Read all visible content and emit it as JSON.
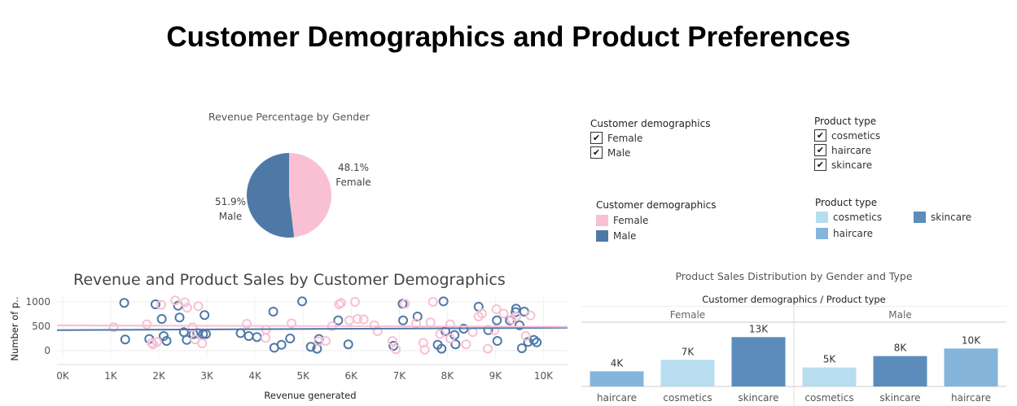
{
  "page": {
    "title": "Customer Demographics and Product Preferences"
  },
  "colors": {
    "female": "#f9c0d4",
    "male": "#4e79a7",
    "cosmetics": "#b8ddf0",
    "haircare": "#86b5db",
    "skincare": "#5b8cbb",
    "gridline": "#e6e6e6"
  },
  "filters": {
    "demographics": {
      "title": "Customer demographics",
      "items": [
        {
          "label": "Female",
          "checked": true,
          "mark": "✔"
        },
        {
          "label": "Male",
          "checked": true,
          "mark": "✔"
        }
      ]
    },
    "product_type": {
      "title": "Product type",
      "items": [
        {
          "label": "cosmetics",
          "checked": true,
          "mark": "✔"
        },
        {
          "label": "haircare",
          "checked": true,
          "mark": "✔"
        },
        {
          "label": "skincare",
          "checked": true,
          "mark": "✔"
        }
      ]
    }
  },
  "legends": {
    "demographics": {
      "title": "Customer demographics",
      "items": [
        {
          "label": "Female",
          "color": "#f9c0d4"
        },
        {
          "label": "Male",
          "color": "#4e79a7"
        }
      ]
    },
    "product_type": {
      "title": "Product type",
      "items": [
        {
          "label": "cosmetics",
          "color": "#b8ddf0"
        },
        {
          "label": "haircare",
          "color": "#86b5db"
        },
        {
          "label": "skincare",
          "color": "#5b8cbb"
        }
      ]
    }
  },
  "chart_data": [
    {
      "type": "pie",
      "title": "Revenue Percentage by Gender",
      "slices": [
        {
          "label": "Female",
          "value": 48.1,
          "value_label": "48.1%",
          "color": "#f9c0d4"
        },
        {
          "label": "Male",
          "value": 51.9,
          "value_label": "51.9%",
          "color": "#4e79a7"
        }
      ]
    },
    {
      "type": "scatter",
      "title": "Revenue and Product Sales by Customer Demographics",
      "xlabel": "Revenue generated",
      "ylabel": "Number of p..",
      "xlim": [
        0,
        10500
      ],
      "ylim": [
        -150,
        1100
      ],
      "xticks": [
        "0K",
        "1K",
        "2K",
        "3K",
        "4K",
        "5K",
        "6K",
        "7K",
        "8K",
        "9K",
        "10K"
      ],
      "yticks": [
        "0",
        "500",
        "1000"
      ],
      "grid": true,
      "series": [
        {
          "name": "Male",
          "color": "#4e79a7",
          "trend": [
            [
              0,
              420
            ],
            [
              10500,
              470
            ]
          ],
          "points": [
            [
              1280,
              980
            ],
            [
              1930,
              950
            ],
            [
              2060,
              650
            ],
            [
              2160,
              200
            ],
            [
              1300,
              230
            ],
            [
              1800,
              240
            ],
            [
              2100,
              300
            ],
            [
              2400,
              920
            ],
            [
              2430,
              680
            ],
            [
              2520,
              380
            ],
            [
              2580,
              220
            ],
            [
              2720,
              340
            ],
            [
              2800,
              360
            ],
            [
              2920,
              340
            ],
            [
              2950,
              730
            ],
            [
              2980,
              340
            ],
            [
              3700,
              360
            ],
            [
              3870,
              300
            ],
            [
              4040,
              280
            ],
            [
              4380,
              800
            ],
            [
              4400,
              60
            ],
            [
              4550,
              120
            ],
            [
              4730,
              250
            ],
            [
              4980,
              1010
            ],
            [
              5160,
              80
            ],
            [
              5290,
              40
            ],
            [
              5330,
              240
            ],
            [
              5730,
              620
            ],
            [
              5940,
              130
            ],
            [
              6880,
              100
            ],
            [
              7070,
              960
            ],
            [
              7080,
              620
            ],
            [
              7380,
              700
            ],
            [
              7800,
              120
            ],
            [
              7880,
              40
            ],
            [
              7920,
              1010
            ],
            [
              7960,
              400
            ],
            [
              8150,
              320
            ],
            [
              8170,
              130
            ],
            [
              8340,
              450
            ],
            [
              8650,
              900
            ],
            [
              8850,
              420
            ],
            [
              9030,
              620
            ],
            [
              9040,
              200
            ],
            [
              9300,
              620
            ],
            [
              9420,
              790
            ],
            [
              9430,
              860
            ],
            [
              9500,
              520
            ],
            [
              9550,
              50
            ],
            [
              9600,
              800
            ],
            [
              9680,
              180
            ],
            [
              9800,
              220
            ],
            [
              9860,
              170
            ]
          ]
        },
        {
          "name": "Female",
          "color": "#f9c0d4",
          "trend": [
            [
              0,
              520
            ],
            [
              10500,
              490
            ]
          ],
          "points": [
            [
              1060,
              480
            ],
            [
              1750,
              540
            ],
            [
              1850,
              160
            ],
            [
              1880,
              130
            ],
            [
              1960,
              180
            ],
            [
              2050,
              940
            ],
            [
              2340,
              1030
            ],
            [
              2540,
              990
            ],
            [
              2590,
              880
            ],
            [
              2700,
              480
            ],
            [
              2750,
              230
            ],
            [
              2820,
              910
            ],
            [
              2900,
              150
            ],
            [
              3830,
              550
            ],
            [
              4220,
              260
            ],
            [
              4230,
              430
            ],
            [
              4760,
              560
            ],
            [
              5320,
              190
            ],
            [
              5470,
              200
            ],
            [
              5600,
              500
            ],
            [
              5750,
              950
            ],
            [
              5790,
              980
            ],
            [
              5960,
              620
            ],
            [
              6080,
              1000
            ],
            [
              6130,
              650
            ],
            [
              6260,
              640
            ],
            [
              6480,
              520
            ],
            [
              6550,
              400
            ],
            [
              6860,
              200
            ],
            [
              6930,
              30
            ],
            [
              7120,
              960
            ],
            [
              7350,
              560
            ],
            [
              7500,
              160
            ],
            [
              7530,
              20
            ],
            [
              7650,
              580
            ],
            [
              7700,
              1000
            ],
            [
              7850,
              340
            ],
            [
              8060,
              540
            ],
            [
              8060,
              250
            ],
            [
              8390,
              130
            ],
            [
              8530,
              380
            ],
            [
              8650,
              700
            ],
            [
              8720,
              760
            ],
            [
              8840,
              40
            ],
            [
              8980,
              420
            ],
            [
              9020,
              850
            ],
            [
              9170,
              760
            ],
            [
              9340,
              640
            ],
            [
              9430,
              700
            ],
            [
              9630,
              300
            ],
            [
              9730,
              720
            ]
          ]
        }
      ]
    },
    {
      "type": "bar",
      "title": "Product Sales Distribution by Gender and Type",
      "header": "Customer demographics / Product type",
      "ylim": [
        0,
        15000
      ],
      "panels": [
        {
          "name": "Female",
          "bars": [
            {
              "category": "haircare",
              "value": 4000,
              "label": "4K",
              "color": "#86b5db"
            },
            {
              "category": "cosmetics",
              "value": 7000,
              "label": "7K",
              "color": "#b8ddf0"
            },
            {
              "category": "skincare",
              "value": 13000,
              "label": "13K",
              "color": "#5b8cbb"
            }
          ]
        },
        {
          "name": "Male",
          "bars": [
            {
              "category": "cosmetics",
              "value": 5000,
              "label": "5K",
              "color": "#b8ddf0"
            },
            {
              "category": "skincare",
              "value": 8000,
              "label": "8K",
              "color": "#5b8cbb"
            },
            {
              "category": "haircare",
              "value": 10000,
              "label": "10K",
              "color": "#86b5db"
            }
          ]
        }
      ]
    }
  ]
}
